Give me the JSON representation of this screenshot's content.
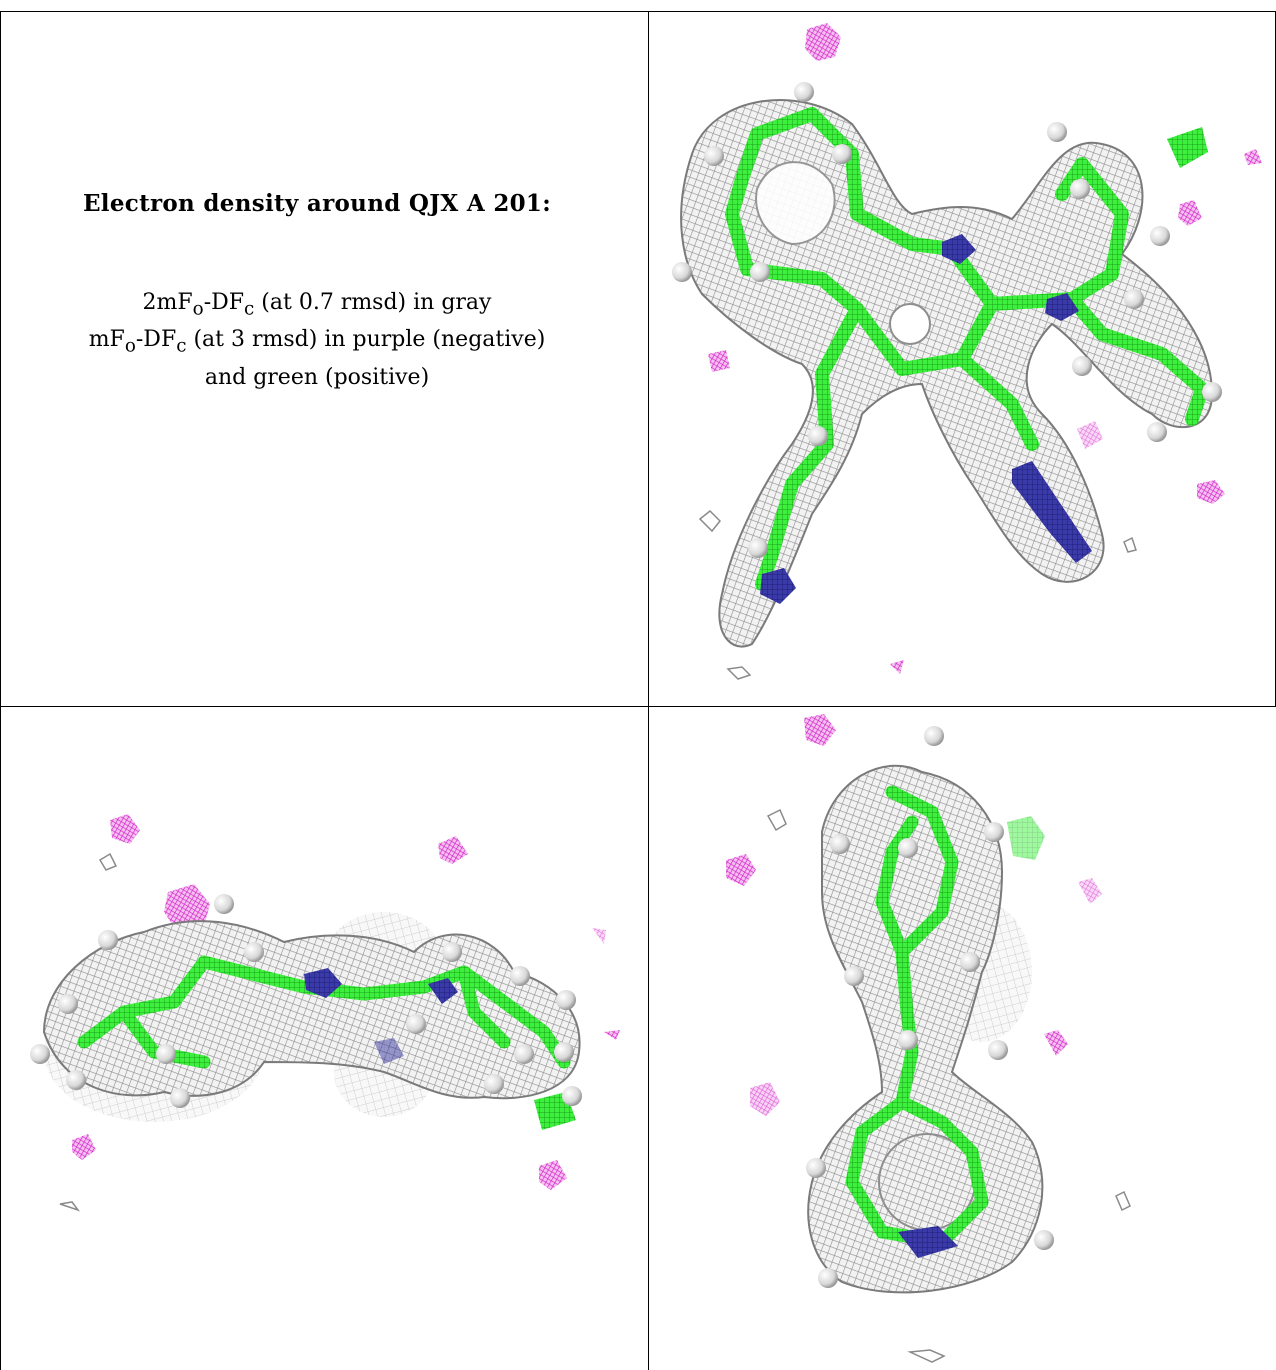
{
  "caption": {
    "title": "Electron density around QJX A 201:",
    "line1_pre": "2mF",
    "line1_sub1": "o",
    "line1_mid": "-DF",
    "line1_sub2": "c",
    "line1_post": " (at 0.7 rmsd) in gray",
    "line2_pre": "mF",
    "line2_sub1": "o",
    "line2_mid": "-DF",
    "line2_sub2": "c",
    "line2_post": " (at 3 rmsd) in purple (negative)",
    "line3": "and green (positive)"
  },
  "colors": {
    "mesh_gray": "#9a9a9a",
    "carbon_green": "#3ef03e",
    "nitrogen_blue": "#3a3aa8",
    "negative_purple": "#d020c8",
    "positive_green": "#22e022",
    "hydrogen_white": "#e6e6e6"
  }
}
